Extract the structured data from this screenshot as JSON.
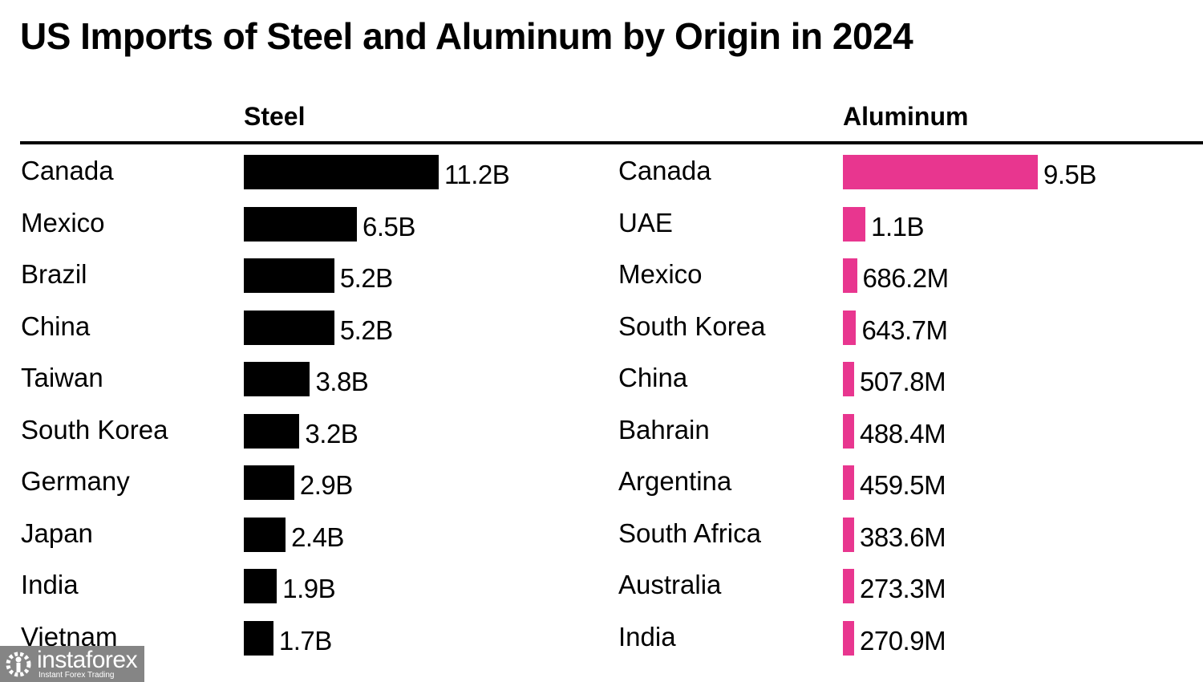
{
  "chart_data": {
    "type": "bar",
    "orientation": "horizontal",
    "title": "US Imports of Steel and Aluminum by Origin in 2024",
    "panels": [
      {
        "name": "Steel",
        "color": "#000000",
        "unit": "USD",
        "categories": [
          "Canada",
          "Mexico",
          "Brazil",
          "China",
          "Taiwan",
          "South Korea",
          "Germany",
          "Japan",
          "India",
          "Vietnam"
        ],
        "values": [
          11200000000.0,
          6500000000.0,
          5200000000.0,
          5200000000.0,
          3800000000.0,
          3200000000.0,
          2900000000.0,
          2400000000.0,
          1900000000.0,
          1700000000.0
        ],
        "labels": [
          "11.2B",
          "6.5B",
          "5.2B",
          "5.2B",
          "3.8B",
          "3.2B",
          "2.9B",
          "2.4B",
          "1.9B",
          "1.7B"
        ]
      },
      {
        "name": "Aluminum",
        "color": "#e8368f",
        "unit": "USD",
        "categories": [
          "Canada",
          "UAE",
          "Mexico",
          "South Korea",
          "China",
          "Bahrain",
          "Argentina",
          "South Africa",
          "Australia",
          "India"
        ],
        "values": [
          9500000000.0,
          1100000000.0,
          686200000.0,
          643700000.0,
          507800000.0,
          488400000.0,
          459500000.0,
          383600000.0,
          273300000.0,
          270900000.0
        ],
        "labels": [
          "9.5B",
          "1.1B",
          "686.2M",
          "643.7M",
          "507.8M",
          "488.4M",
          "459.5M",
          "383.6M",
          "273.3M",
          "270.9M"
        ]
      }
    ],
    "grid": false,
    "legend": "none"
  },
  "watermark": {
    "name": "instaforex",
    "tagline": "Instant Forex Trading"
  }
}
